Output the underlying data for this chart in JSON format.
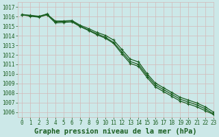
{
  "title": "Graphe pression niveau de la mer (hPa)",
  "background_color": "#cce8e8",
  "grid_color": "#d4b8b8",
  "line_color": "#1a5e20",
  "xlim": [
    -0.5,
    23
  ],
  "ylim": [
    1005.5,
    1017.5
  ],
  "yticks": [
    1006,
    1007,
    1008,
    1009,
    1010,
    1011,
    1012,
    1013,
    1014,
    1015,
    1016,
    1017
  ],
  "xticks": [
    0,
    1,
    2,
    3,
    4,
    5,
    6,
    7,
    8,
    9,
    10,
    11,
    12,
    13,
    14,
    15,
    16,
    17,
    18,
    19,
    20,
    21,
    22,
    23
  ],
  "series": [
    {
      "x": [
        0,
        1,
        2,
        3,
        4,
        5,
        6,
        7,
        8,
        9,
        10,
        11,
        12,
        13,
        14,
        15,
        16,
        17,
        18,
        19,
        20,
        21,
        22,
        23
      ],
      "y": [
        1016.2,
        1016.15,
        1016.05,
        1016.25,
        1015.55,
        1015.55,
        1015.6,
        1015.1,
        1014.75,
        1014.35,
        1014.05,
        1013.55,
        1012.55,
        1011.55,
        1011.25,
        1010.05,
        1009.05,
        1008.55,
        1008.05,
        1007.55,
        1007.25,
        1006.95,
        1006.55,
        1006.0
      ]
    },
    {
      "x": [
        0,
        1,
        2,
        3,
        4,
        5,
        6,
        7,
        8,
        9,
        10,
        11,
        12,
        13,
        14,
        15,
        16,
        17,
        18,
        19,
        20,
        21,
        22,
        23
      ],
      "y": [
        1016.25,
        1016.1,
        1016.0,
        1016.3,
        1015.45,
        1015.5,
        1015.55,
        1015.0,
        1014.6,
        1014.2,
        1013.85,
        1013.3,
        1012.3,
        1011.3,
        1011.0,
        1009.85,
        1008.85,
        1008.35,
        1007.85,
        1007.35,
        1007.05,
        1006.75,
        1006.35,
        1005.8
      ]
    },
    {
      "x": [
        0,
        1,
        2,
        3,
        4,
        5,
        6,
        7,
        8,
        9,
        10,
        11,
        12,
        13,
        14,
        15,
        16,
        17,
        18,
        19,
        20,
        21,
        22,
        23
      ],
      "y": [
        1016.2,
        1016.05,
        1015.95,
        1016.2,
        1015.35,
        1015.4,
        1015.45,
        1014.95,
        1014.55,
        1014.1,
        1013.75,
        1013.2,
        1012.1,
        1011.1,
        1010.8,
        1009.65,
        1008.65,
        1008.15,
        1007.65,
        1007.15,
        1006.85,
        1006.55,
        1006.15,
        1005.75
      ]
    }
  ],
  "title_fontsize": 7.5,
  "tick_fontsize": 5.5,
  "tick_color": "#1a5e20",
  "linewidth": 0.9,
  "markersize": 2.5,
  "figwidth": 3.2,
  "figheight": 2.0,
  "dpi": 100
}
